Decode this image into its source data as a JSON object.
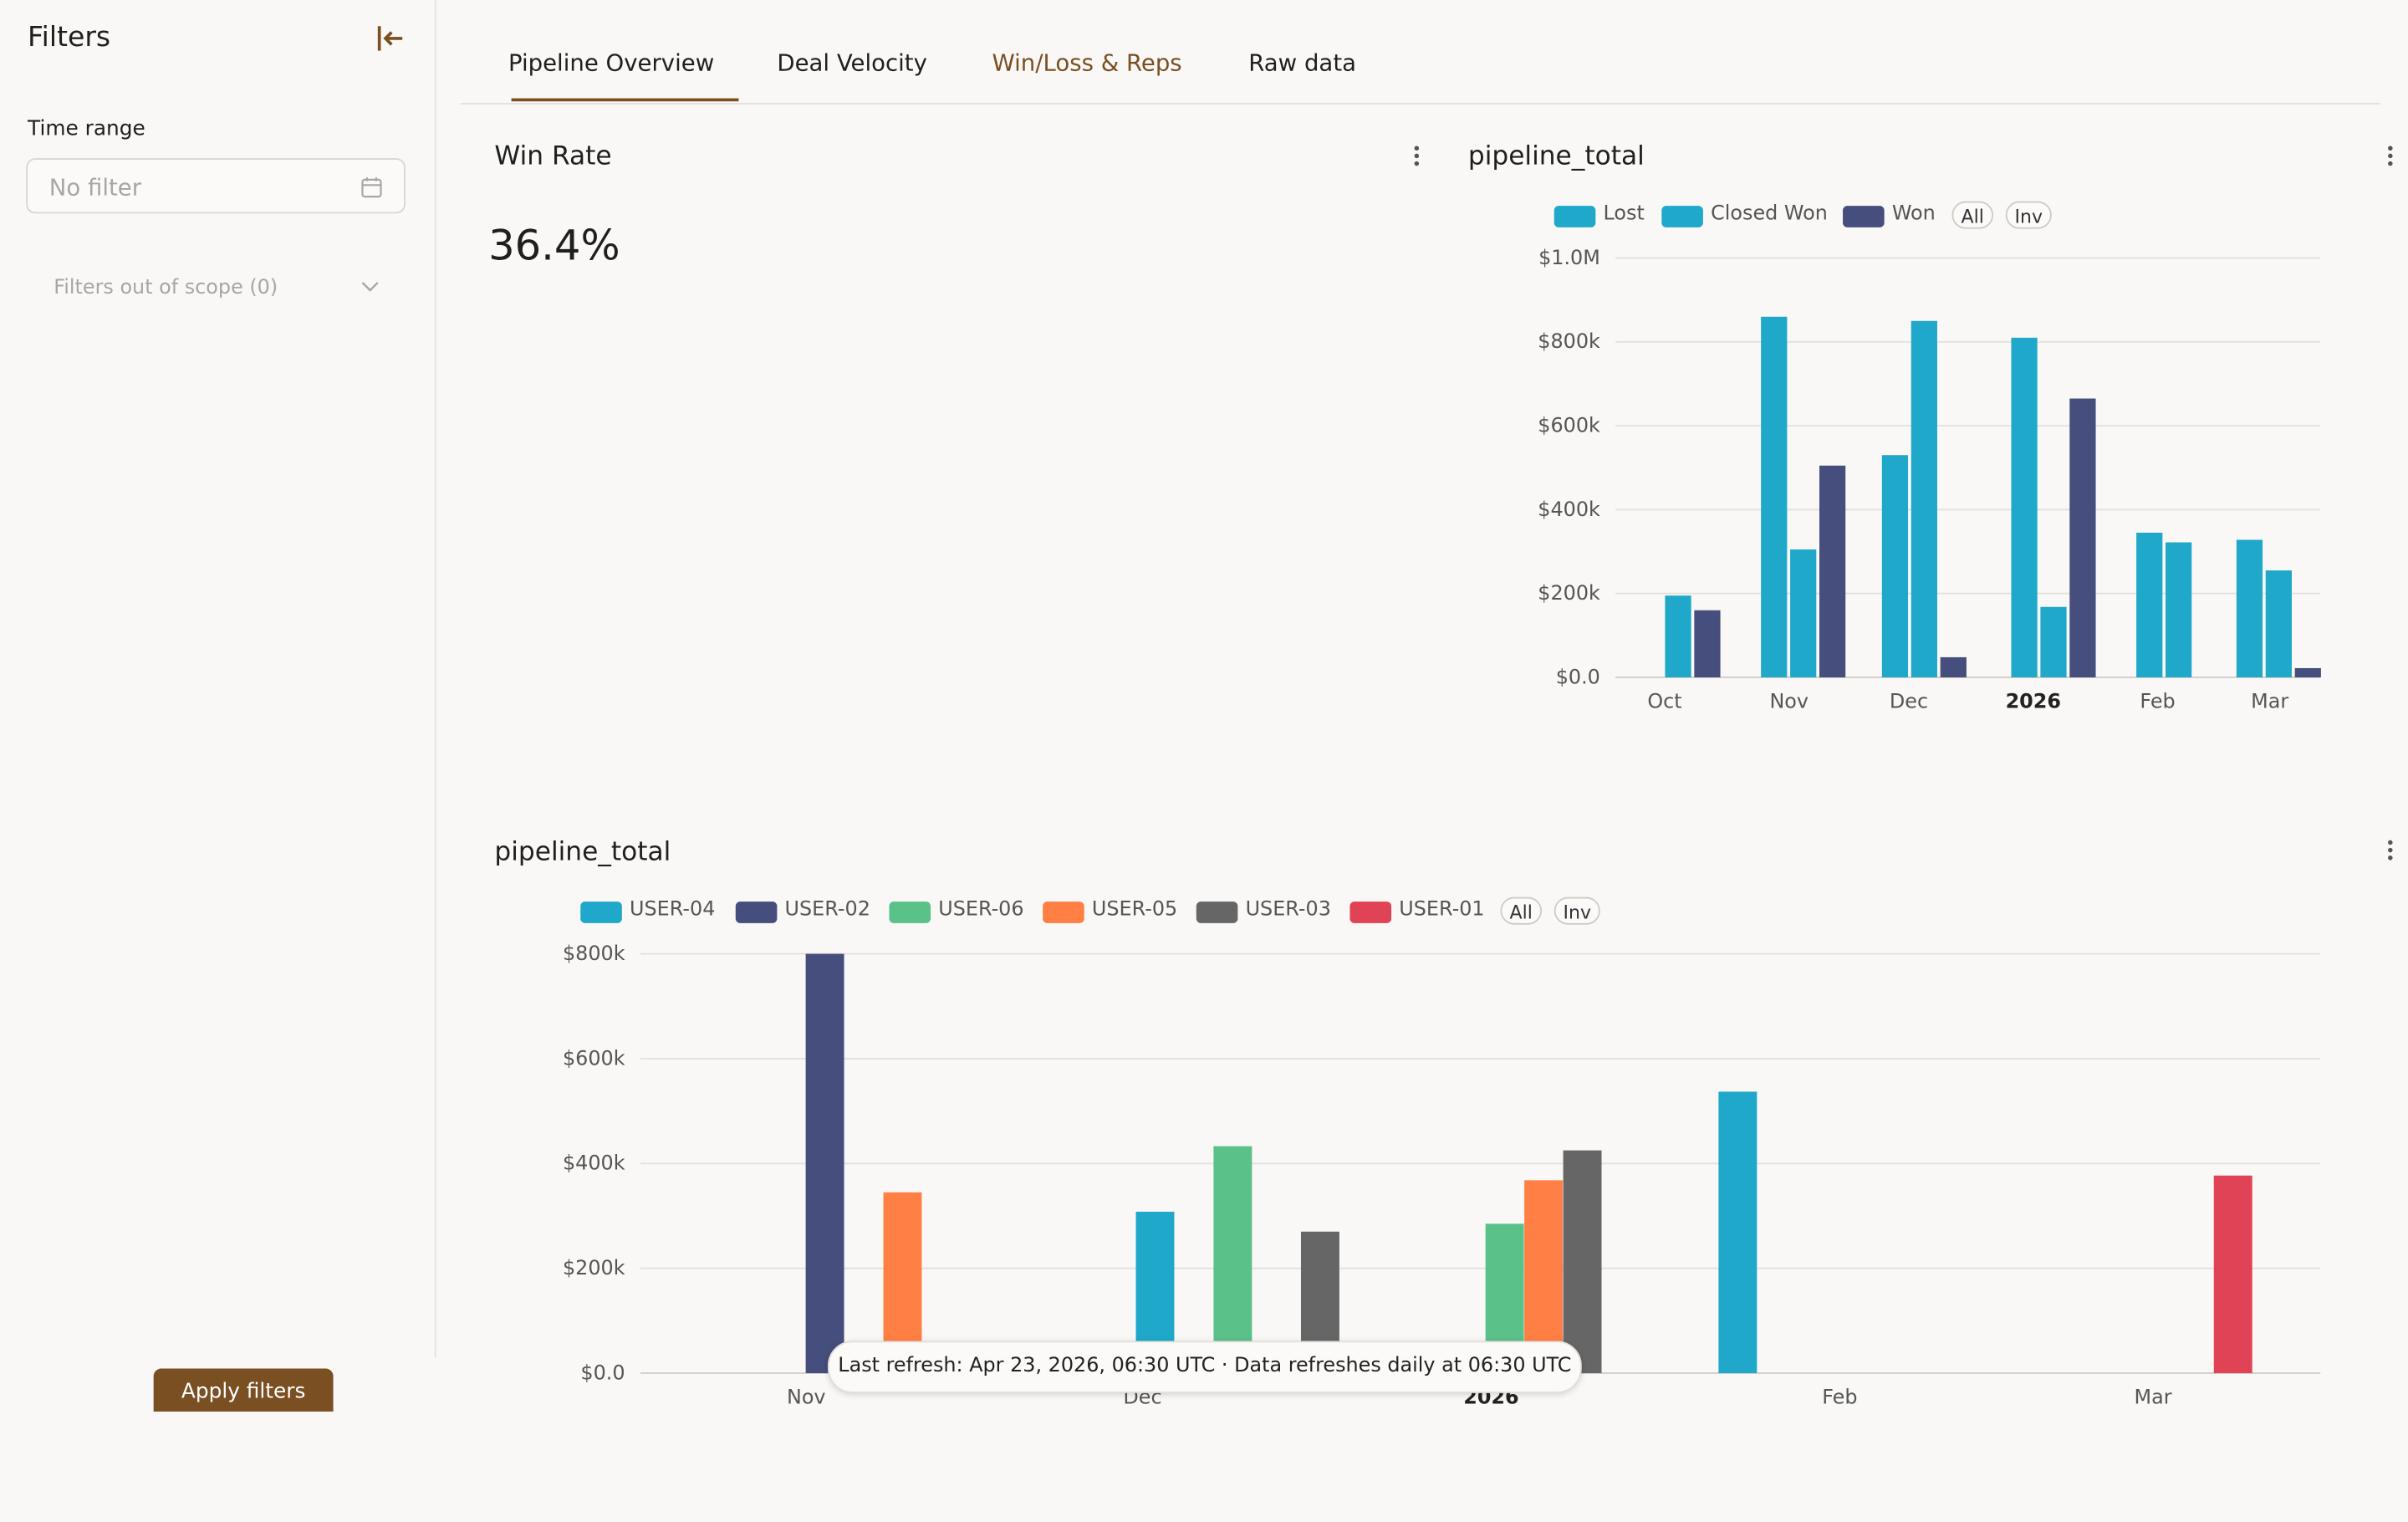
{
  "sidebar": {
    "title": "Filters",
    "time_range_label": "Time range",
    "time_range_placeholder": "No filter",
    "filters_out_of_scope": "Filters out of scope (0)",
    "apply_label": "Apply filters"
  },
  "tabs": [
    {
      "label": "Pipeline Overview",
      "active": false
    },
    {
      "label": "Deal Velocity",
      "active": false
    },
    {
      "label": "Win/Loss & Reps",
      "active": true
    },
    {
      "label": "Raw data",
      "active": false
    }
  ],
  "win_rate": {
    "title": "Win Rate",
    "value": "36.4%"
  },
  "colors": {
    "accent": "#7a4f22",
    "lost": "#1fa8c9",
    "closed_won": "#1fa8c9",
    "won": "#454e7c",
    "user04": "#1fa8c9",
    "user02": "#454e7c",
    "user06": "#5ac189",
    "user05": "#ff7f44",
    "user03": "#666666",
    "user01": "#e04355"
  },
  "icons": {
    "collapse": "collapse-left-icon",
    "calendar": "calendar-icon",
    "chevron": "chevron-down-icon",
    "menu": "kebab-menu-icon"
  },
  "legend_controls": {
    "all": "All",
    "inv": "Inv"
  },
  "toast": "Last refresh: Apr 23, 2026, 06:30 UTC · Data refreshes daily at 06:30 UTC",
  "chart_data": [
    {
      "type": "bar",
      "title": "pipeline_total",
      "legend_position": "top",
      "grid": true,
      "ylim": [
        0,
        1000000
      ],
      "y_ticks": [
        "$0.0",
        "$200k",
        "$400k",
        "$600k",
        "$800k",
        "$1.0M"
      ],
      "x_ticks": [
        "Oct",
        "Nov",
        "Dec",
        "2026",
        "Feb",
        "Mar"
      ],
      "series": [
        {
          "name": "Lost",
          "color": "#1fa8c9"
        },
        {
          "name": "Closed Won",
          "color": "#1fa8c9"
        },
        {
          "name": "Won",
          "color": "#454e7c"
        }
      ],
      "bars": [
        {
          "date": "2025-10-20",
          "series": "Lost",
          "value": 195000
        },
        {
          "date": "2025-10-27",
          "series": "Won",
          "value": 160000
        },
        {
          "date": "2025-11-12",
          "series": "Lost",
          "value": 860000
        },
        {
          "date": "2025-11-19",
          "series": "Closed Won",
          "value": 305000
        },
        {
          "date": "2025-11-26",
          "series": "Won",
          "value": 505000
        },
        {
          "date": "2025-12-11",
          "series": "Lost",
          "value": 530000
        },
        {
          "date": "2025-12-18",
          "series": "Closed Won",
          "value": 850000
        },
        {
          "date": "2025-12-25",
          "series": "Won",
          "value": 48000
        },
        {
          "date": "2026-01-11",
          "series": "Lost",
          "value": 810000
        },
        {
          "date": "2026-01-18",
          "series": "Closed Won",
          "value": 168000
        },
        {
          "date": "2026-01-25",
          "series": "Won",
          "value": 665000
        },
        {
          "date": "2026-02-10",
          "series": "Lost",
          "value": 345000
        },
        {
          "date": "2026-02-17",
          "series": "Closed Won",
          "value": 322000
        },
        {
          "date": "2026-03-06",
          "series": "Lost",
          "value": 328000
        },
        {
          "date": "2026-03-13",
          "series": "Closed Won",
          "value": 255000
        },
        {
          "date": "2026-03-20",
          "series": "Won",
          "value": 22000
        }
      ]
    },
    {
      "type": "bar",
      "title": "pipeline_total",
      "legend_position": "top",
      "grid": true,
      "ylim": [
        0,
        800000
      ],
      "y_ticks": [
        "$0.0",
        "$200k",
        "$400k",
        "$600k",
        "$800k"
      ],
      "x_ticks": [
        "Nov",
        "Dec",
        "2026",
        "Feb",
        "Mar"
      ],
      "series": [
        {
          "name": "USER-04",
          "color": "#1fa8c9"
        },
        {
          "name": "USER-02",
          "color": "#454e7c"
        },
        {
          "name": "USER-06",
          "color": "#5ac189"
        },
        {
          "name": "USER-05",
          "color": "#ff7f44"
        },
        {
          "name": "USER-03",
          "color": "#666666"
        },
        {
          "name": "USER-01",
          "color": "#e04355"
        }
      ],
      "bars": [
        {
          "date": "2025-10-20",
          "series": "USER-02",
          "value": 800000
        },
        {
          "date": "2025-10-28",
          "series": "USER-05",
          "value": 345000
        },
        {
          "date": "2025-11-23",
          "series": "USER-04",
          "value": 308000
        },
        {
          "date": "2025-12-01",
          "series": "USER-06",
          "value": 433000
        },
        {
          "date": "2025-12-10",
          "series": "USER-03",
          "value": 270000
        },
        {
          "date": "2025-12-29",
          "series": "USER-06",
          "value": 285000
        },
        {
          "date": "2026-01-02",
          "series": "USER-05",
          "value": 368000
        },
        {
          "date": "2026-01-06",
          "series": "USER-03",
          "value": 425000
        },
        {
          "date": "2026-01-22",
          "series": "USER-04",
          "value": 537000
        },
        {
          "date": "2026-03-14",
          "series": "USER-01",
          "value": 377000
        }
      ]
    }
  ]
}
